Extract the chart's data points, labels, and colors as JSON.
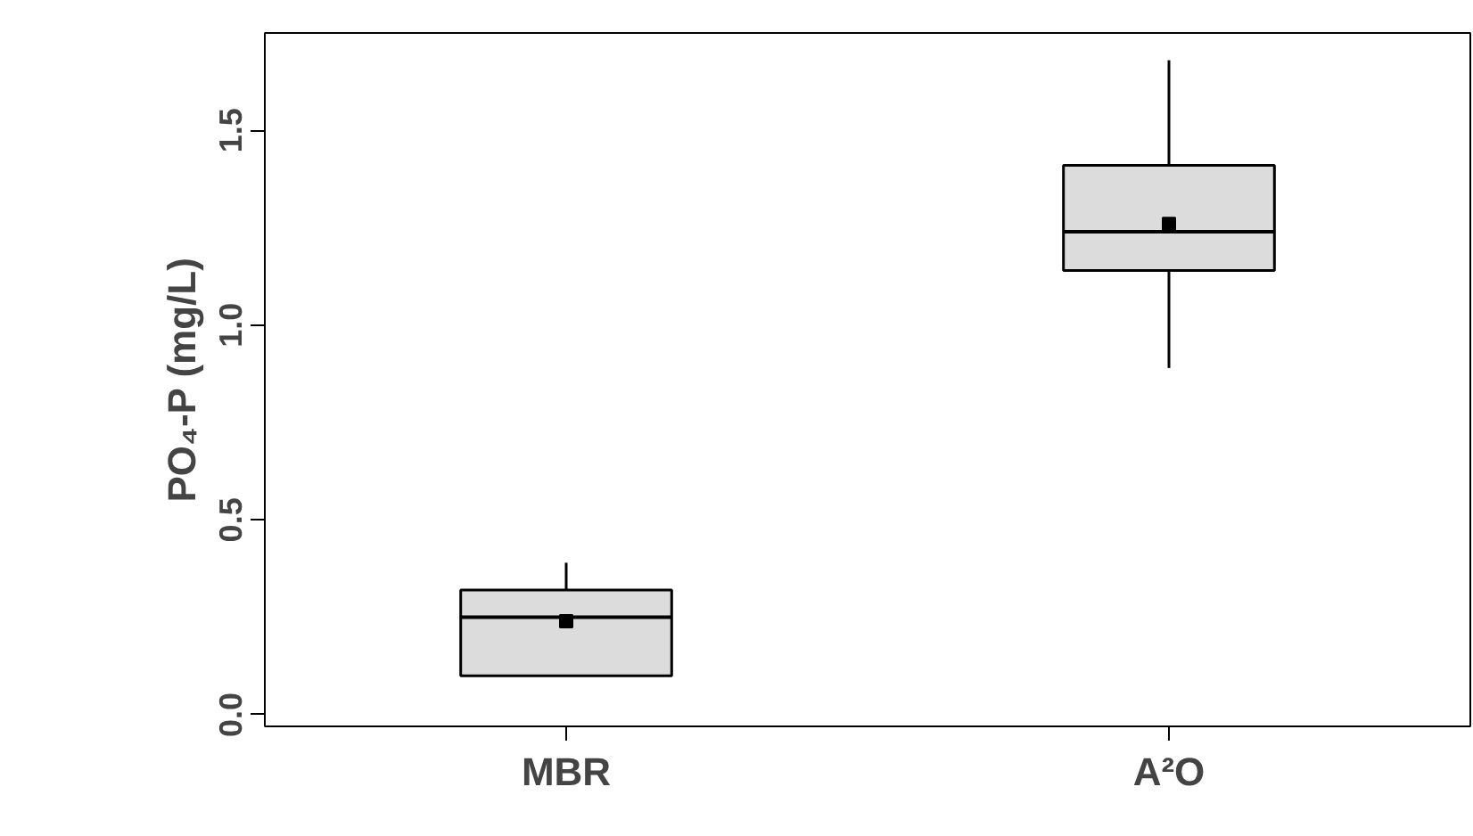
{
  "chart_data": {
    "type": "box",
    "ylabel": "PO₄-P (mg/L)",
    "categories": [
      "MBR",
      "A²O"
    ],
    "series": [
      {
        "color": "#dcdcdc",
        "boxes": [
          {
            "low": 0.1,
            "q1": 0.1,
            "median": 0.25,
            "q3": 0.32,
            "high": 0.39,
            "mean": 0.24
          },
          {
            "low": 0.89,
            "q1": 1.14,
            "median": 1.24,
            "q3": 1.41,
            "high": 1.68,
            "mean": 1.26
          }
        ]
      }
    ],
    "ylim": [
      -0.03,
      1.75
    ],
    "yticks": [
      {
        "value": 0,
        "label": "0.0"
      },
      0.5,
      {
        "value": 1,
        "label": "1.0"
      },
      1.5
    ],
    "grid": false,
    "marker": "square"
  }
}
